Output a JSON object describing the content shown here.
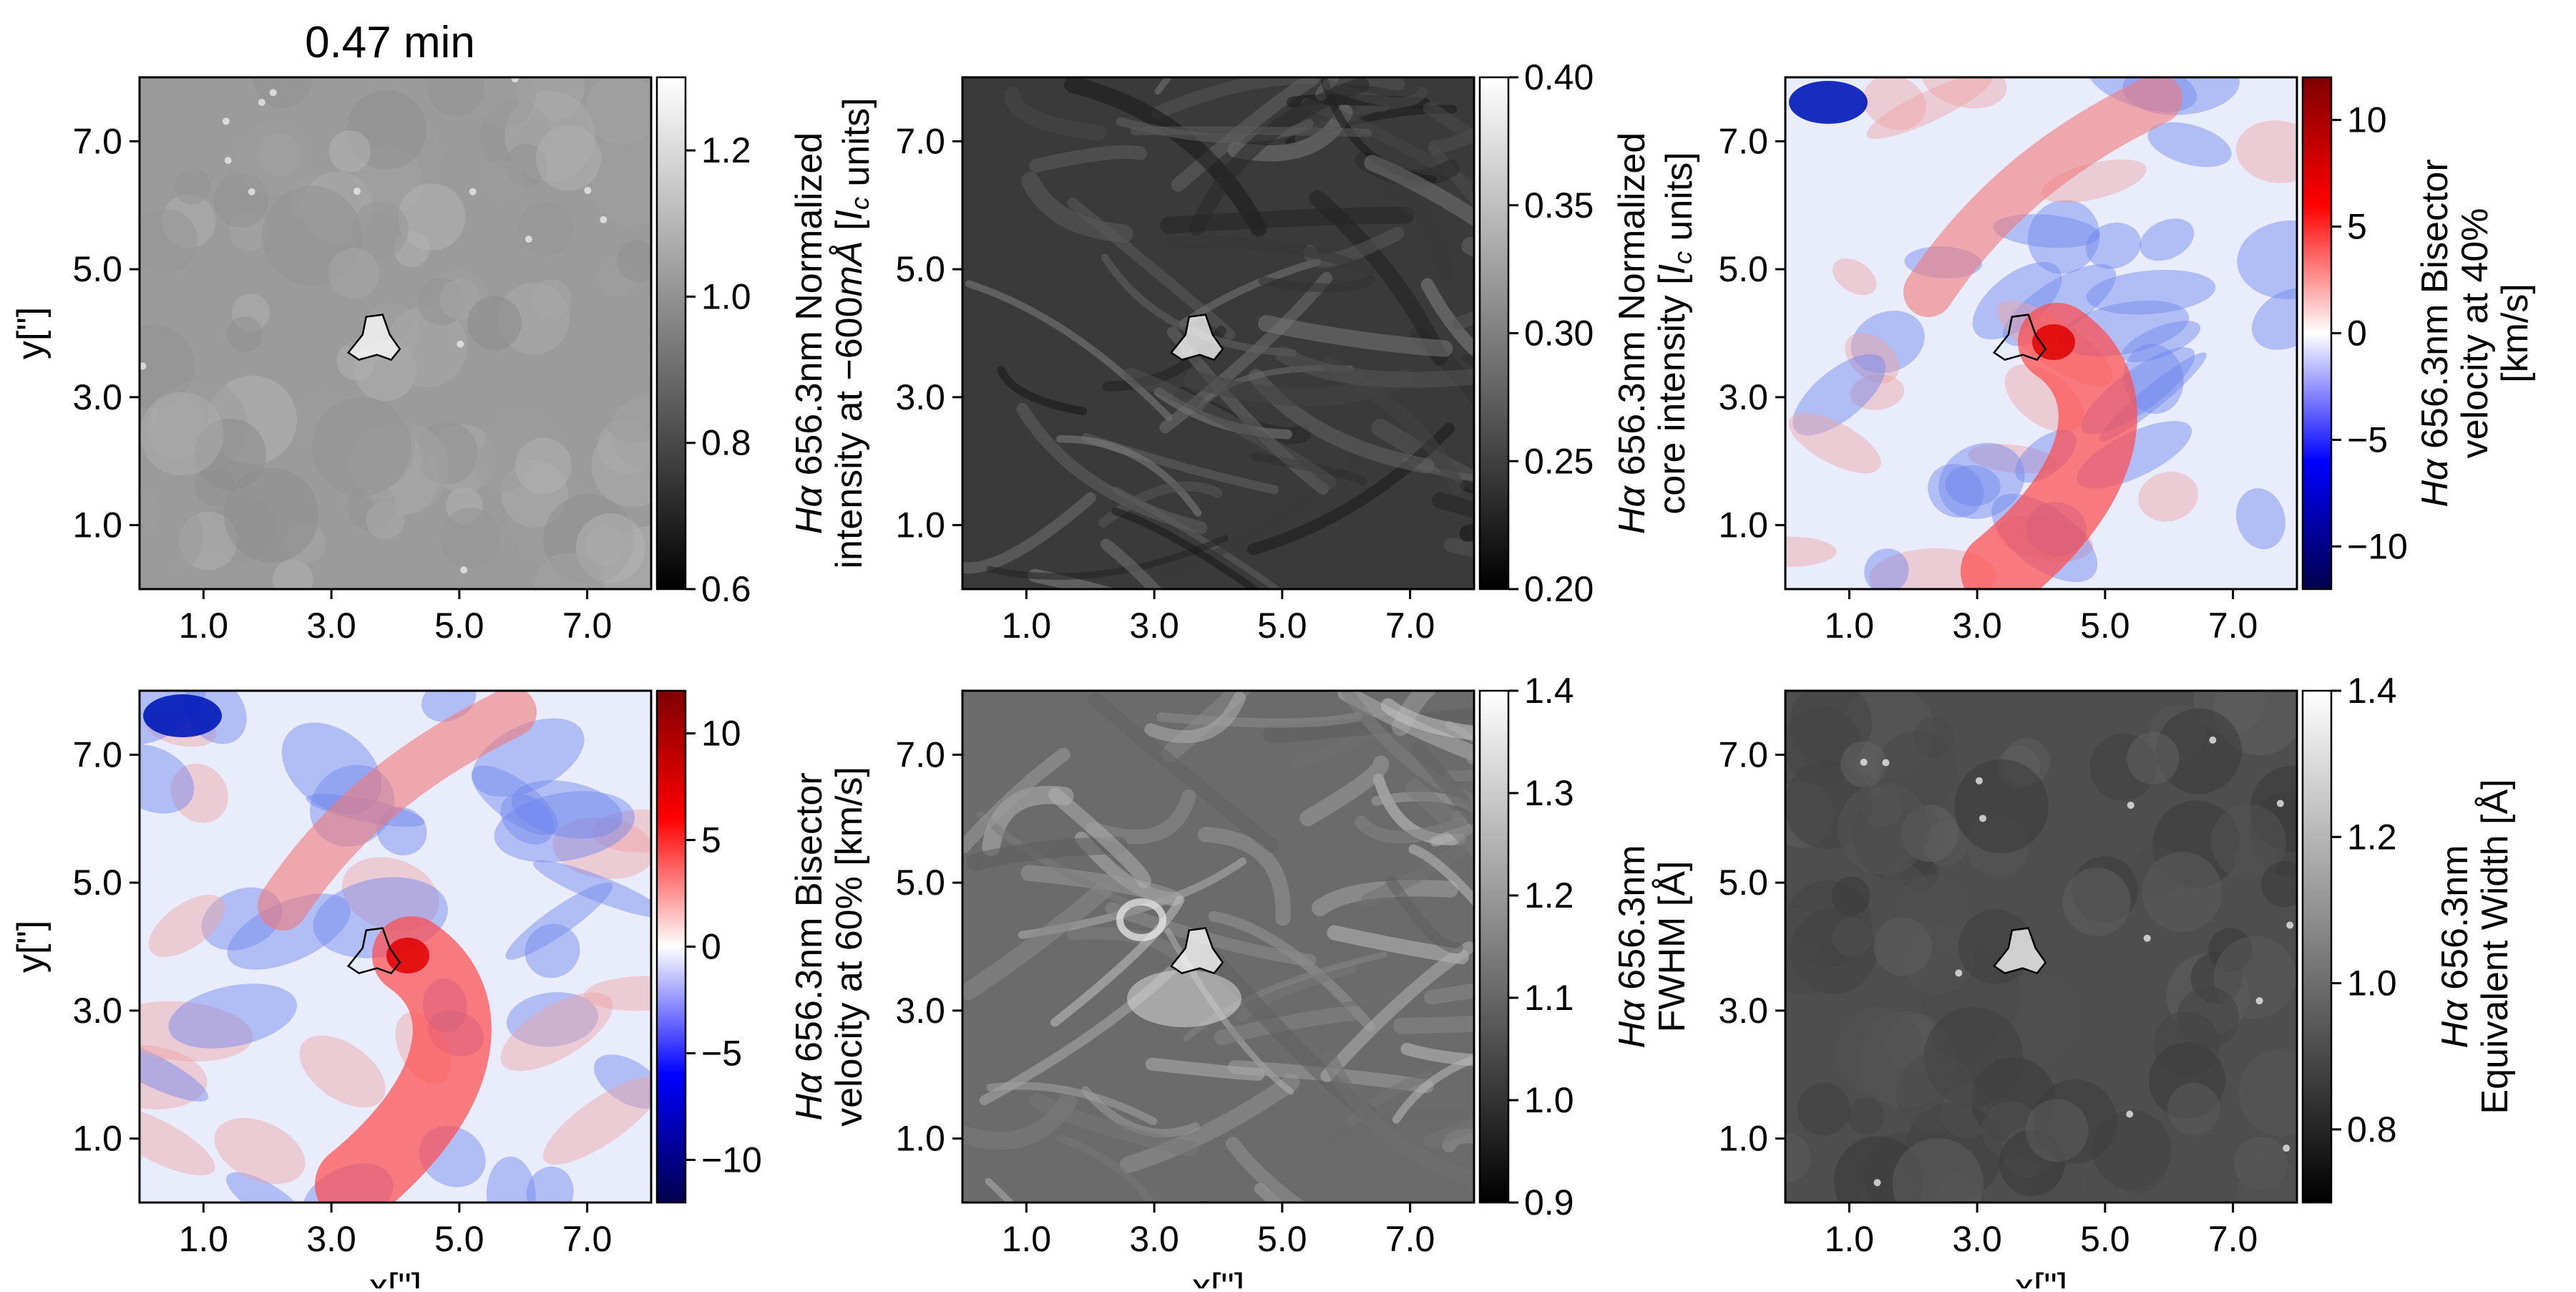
{
  "figure": {
    "title": "0.47 min"
  },
  "chart_data": [
    {
      "type": "heatmap",
      "panel": "top-left",
      "colormap": "gray",
      "background": "#9b9b9b",
      "texture": "granulation",
      "xlabel": "",
      "ylabel": "y[\"]",
      "x_ticks": [
        "1.0",
        "3.0",
        "5.0",
        "7.0"
      ],
      "y_ticks": [
        "1.0",
        "3.0",
        "5.0",
        "7.0"
      ],
      "xlim": [
        0,
        8
      ],
      "ylim": [
        0,
        8
      ],
      "colorbar": {
        "label_lines": [
          "Hα 656.3nm Normalized",
          "intensity at −600mÅ [I_c units]"
        ],
        "range": [
          0.6,
          1.3
        ],
        "ticks": [
          "0.6",
          "0.8",
          "1.0",
          "1.2"
        ],
        "tick_values": [
          0.6,
          0.8,
          1.0,
          1.2
        ],
        "colors": [
          "#000000",
          "#ffffff"
        ]
      }
    },
    {
      "type": "heatmap",
      "panel": "top-middle",
      "colormap": "gray",
      "background": "#3a3a3a",
      "texture": "fibrils",
      "xlabel": "",
      "ylabel": "",
      "x_ticks": [
        "1.0",
        "3.0",
        "5.0",
        "7.0"
      ],
      "y_ticks": [
        "1.0",
        "3.0",
        "5.0",
        "7.0"
      ],
      "xlim": [
        0,
        8
      ],
      "ylim": [
        0,
        8
      ],
      "colorbar": {
        "label_lines": [
          "Hα 656.3nm Normalized",
          "core intensity [I_c units]"
        ],
        "range": [
          0.2,
          0.4
        ],
        "ticks": [
          "0.20",
          "0.25",
          "0.30",
          "0.35",
          "0.40"
        ],
        "tick_values": [
          0.2,
          0.25,
          0.3,
          0.35,
          0.4
        ],
        "colors": [
          "#000000",
          "#ffffff"
        ]
      }
    },
    {
      "type": "heatmap",
      "panel": "top-right",
      "colormap": "seismic",
      "background": "#e8ecfb",
      "texture": "velocity",
      "xlabel": "",
      "ylabel": "",
      "x_ticks": [
        "1.0",
        "3.0",
        "5.0",
        "7.0"
      ],
      "y_ticks": [
        "1.0",
        "3.0",
        "5.0",
        "7.0"
      ],
      "xlim": [
        0,
        8
      ],
      "ylim": [
        0,
        8
      ],
      "colorbar": {
        "label_lines": [
          "Hα 656.3nm Bisector",
          "velocity at 40%",
          "[km/s]"
        ],
        "range": [
          -12,
          12
        ],
        "ticks": [
          "−10",
          "−5",
          "0",
          "5",
          "10"
        ],
        "tick_values": [
          -10,
          -5,
          0,
          5,
          10
        ],
        "colors": [
          "#00004c",
          "#0000ff",
          "#ffffff",
          "#ff0000",
          "#800000"
        ]
      }
    },
    {
      "type": "heatmap",
      "panel": "bottom-left",
      "colormap": "seismic",
      "background": "#e8ecfb",
      "texture": "velocity",
      "xlabel": "x[\"]",
      "ylabel": "y[\"]",
      "x_ticks": [
        "1.0",
        "3.0",
        "5.0",
        "7.0"
      ],
      "y_ticks": [
        "1.0",
        "3.0",
        "5.0",
        "7.0"
      ],
      "xlim": [
        0,
        8
      ],
      "ylim": [
        0,
        8
      ],
      "colorbar": {
        "label_lines": [
          "Hα 656.3nm Bisector",
          "velocity at 60% [km/s]"
        ],
        "range": [
          -12,
          12
        ],
        "ticks": [
          "−10",
          "−5",
          "0",
          "5",
          "10"
        ],
        "tick_values": [
          -10,
          -5,
          0,
          5,
          10
        ],
        "colors": [
          "#00004c",
          "#0000ff",
          "#ffffff",
          "#ff0000",
          "#800000"
        ]
      }
    },
    {
      "type": "heatmap",
      "panel": "bottom-middle",
      "colormap": "gray",
      "background": "#6b6b6b",
      "texture": "fibrils-bright",
      "xlabel": "x[\"]",
      "ylabel": "",
      "x_ticks": [
        "1.0",
        "3.0",
        "5.0",
        "7.0"
      ],
      "y_ticks": [
        "1.0",
        "3.0",
        "5.0",
        "7.0"
      ],
      "xlim": [
        0,
        8
      ],
      "ylim": [
        0,
        8
      ],
      "colorbar": {
        "label_lines": [
          "Hα 656.3nm",
          "FWHM [Å]"
        ],
        "range": [
          0.9,
          1.4
        ],
        "ticks": [
          "0.9",
          "1.0",
          "1.1",
          "1.2",
          "1.3",
          "1.4"
        ],
        "tick_values": [
          0.9,
          1.0,
          1.1,
          1.2,
          1.3,
          1.4
        ],
        "colors": [
          "#000000",
          "#ffffff"
        ]
      }
    },
    {
      "type": "heatmap",
      "panel": "bottom-right",
      "colormap": "gray",
      "background": "#4e4e4e",
      "texture": "granulation",
      "xlabel": "x[\"]",
      "ylabel": "",
      "x_ticks": [
        "1.0",
        "3.0",
        "5.0",
        "7.0"
      ],
      "y_ticks": [
        "1.0",
        "3.0",
        "5.0",
        "7.0"
      ],
      "xlim": [
        0,
        8
      ],
      "ylim": [
        0,
        8
      ],
      "colorbar": {
        "label_lines": [
          "Hα 656.3nm",
          "Equivalent Width [Å]"
        ],
        "range": [
          0.7,
          1.4
        ],
        "ticks": [
          "0.8",
          "1.0",
          "1.2",
          "1.4"
        ],
        "tick_values": [
          0.8,
          1.0,
          1.2,
          1.4
        ],
        "colors": [
          "#000000",
          "#ffffff"
        ]
      }
    }
  ]
}
